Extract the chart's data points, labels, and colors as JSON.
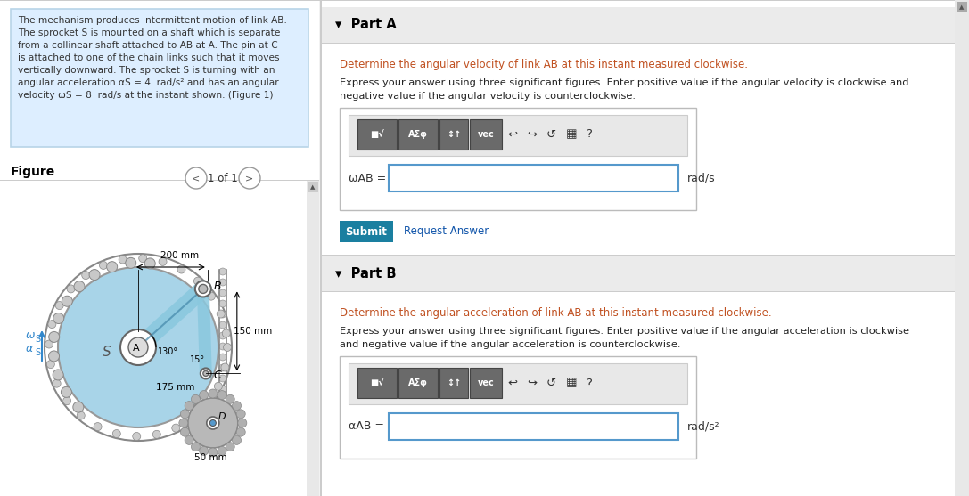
{
  "bg_color": "#f2f2f2",
  "left_panel_bg": "#ddeeff",
  "left_panel_border": "#b8d4e8",
  "problem_text_lines": [
    "The mechanism produces intermittent motion of link AB.",
    "The sprocket S is mounted on a shaft which is separate",
    "from a collinear shaft attached to AB at A. The pin at C",
    "is attached to one of the chain links such that it moves",
    "vertically downward. The sprocket S is turning with an",
    "angular acceleration αS = 4  rad/s² and has an angular",
    "velocity ωS = 8  rad/s at the instant shown. (Figure 1)"
  ],
  "figure_label": "Figure",
  "nav_text": "1 of 1",
  "part_a_header": "Part A",
  "part_a_blue_text": "Determine the angular velocity of link AB at this instant measured clockwise.",
  "part_a_black_text1": "Express your answer using three significant figures. Enter positive value if the angular velocity is clockwise and",
  "part_a_black_text2": "negative value if the angular velocity is counterclockwise.",
  "omega_label": "ωAB =",
  "omega_unit": "rad/s",
  "part_b_header": "Part B",
  "part_b_blue_text": "Determine the angular acceleration of link AB at this instant measured clockwise.",
  "part_b_black_text1": "Express your answer using three significant figures. Enter positive value if the angular acceleration is clockwise",
  "part_b_black_text2": "and negative value if the angular acceleration is counterclockwise.",
  "alpha_label": "αAB =",
  "alpha_unit": "rad/s²",
  "submit_color": "#1a7fa0",
  "submit_text": "Submit",
  "request_text": "Request Answer",
  "input_border": "#5599cc",
  "separator_color": "#cccccc",
  "white": "#ffffff",
  "scrollbar_bg": "#d8d8d8",
  "scrollbar_thumb": "#b0b0b0",
  "header_bg": "#e8e8e8",
  "btn_bg": "#6a6a6a",
  "toolbar_bg": "#e8e8e8",
  "dark_text": "#222222",
  "blue_link": "#1155aa",
  "blue_text": "#c05020"
}
